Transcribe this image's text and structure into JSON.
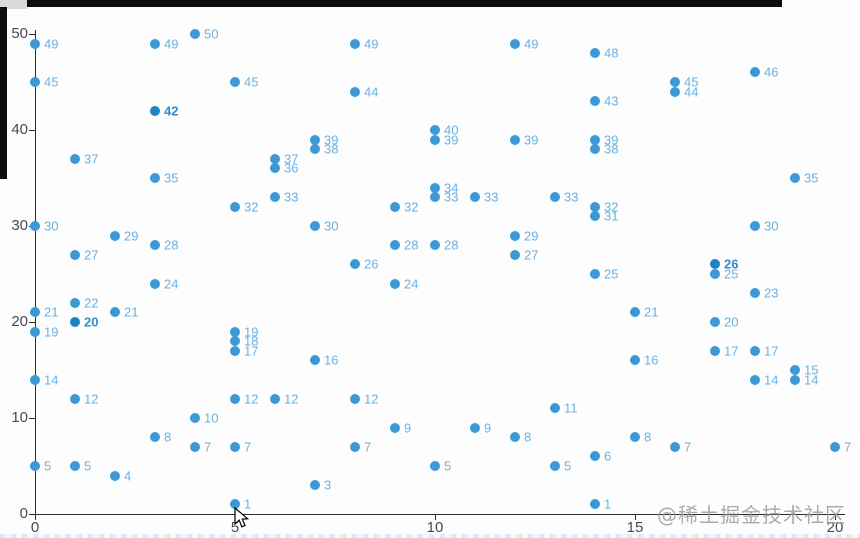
{
  "watermark": {
    "text": "@稀土掘金技术社区",
    "color": "#9c9c9c"
  },
  "chart_data": {
    "type": "scatter",
    "title": "",
    "xlabel": "",
    "ylabel": "",
    "grid": false,
    "legend": false,
    "point_label_source": "y-value shown right of each marker",
    "x_axis": {
      "min": 0,
      "max": 20,
      "ticks": [
        0,
        5,
        10,
        15,
        20
      ]
    },
    "y_axis": {
      "min": 0,
      "max": 50,
      "ticks": [
        0,
        10,
        20,
        30,
        40,
        50
      ]
    },
    "colors": {
      "marker": "#3d99d6",
      "marker_emphasis": "#1f83c4",
      "label": "#6cb1e1",
      "label_emphasis": "#2f8fce",
      "axis": "#2b2b2b",
      "tick_text": "#4a4a4a"
    },
    "points": [
      {
        "x": 4,
        "y": 50
      },
      {
        "x": 0,
        "y": 49
      },
      {
        "x": 3,
        "y": 49
      },
      {
        "x": 8,
        "y": 49
      },
      {
        "x": 12,
        "y": 49
      },
      {
        "x": 14,
        "y": 48
      },
      {
        "x": 18,
        "y": 46
      },
      {
        "x": 0,
        "y": 45
      },
      {
        "x": 5,
        "y": 45
      },
      {
        "x": 16,
        "y": 45
      },
      {
        "x": 8,
        "y": 44
      },
      {
        "x": 16,
        "y": 44
      },
      {
        "x": 14,
        "y": 43
      },
      {
        "x": 3,
        "y": 42,
        "bold": true
      },
      {
        "x": 10,
        "y": 40
      },
      {
        "x": 7,
        "y": 39
      },
      {
        "x": 10,
        "y": 39
      },
      {
        "x": 12,
        "y": 39
      },
      {
        "x": 14,
        "y": 39
      },
      {
        "x": 7,
        "y": 38
      },
      {
        "x": 14,
        "y": 38
      },
      {
        "x": 1,
        "y": 37
      },
      {
        "x": 6,
        "y": 37
      },
      {
        "x": 6,
        "y": 36
      },
      {
        "x": 3,
        "y": 35
      },
      {
        "x": 19,
        "y": 35
      },
      {
        "x": 10,
        "y": 34
      },
      {
        "x": 6,
        "y": 33
      },
      {
        "x": 10,
        "y": 33
      },
      {
        "x": 11,
        "y": 33
      },
      {
        "x": 13,
        "y": 33
      },
      {
        "x": 5,
        "y": 32
      },
      {
        "x": 9,
        "y": 32
      },
      {
        "x": 14,
        "y": 32
      },
      {
        "x": 14,
        "y": 31
      },
      {
        "x": 0,
        "y": 30
      },
      {
        "x": 7,
        "y": 30
      },
      {
        "x": 18,
        "y": 30
      },
      {
        "x": 2,
        "y": 29
      },
      {
        "x": 12,
        "y": 29
      },
      {
        "x": 3,
        "y": 28
      },
      {
        "x": 9,
        "y": 28
      },
      {
        "x": 10,
        "y": 28
      },
      {
        "x": 1,
        "y": 27
      },
      {
        "x": 12,
        "y": 27
      },
      {
        "x": 8,
        "y": 26
      },
      {
        "x": 17,
        "y": 26,
        "bold": true
      },
      {
        "x": 14,
        "y": 25
      },
      {
        "x": 17,
        "y": 25
      },
      {
        "x": 3,
        "y": 24
      },
      {
        "x": 9,
        "y": 24
      },
      {
        "x": 18,
        "y": 23
      },
      {
        "x": 1,
        "y": 22
      },
      {
        "x": 0,
        "y": 21
      },
      {
        "x": 2,
        "y": 21
      },
      {
        "x": 15,
        "y": 21
      },
      {
        "x": 1,
        "y": 20,
        "bold": true
      },
      {
        "x": 17,
        "y": 20
      },
      {
        "x": 0,
        "y": 19
      },
      {
        "x": 5,
        "y": 19
      },
      {
        "x": 5,
        "y": 18
      },
      {
        "x": 5,
        "y": 17
      },
      {
        "x": 17,
        "y": 17
      },
      {
        "x": 18,
        "y": 17
      },
      {
        "x": 7,
        "y": 16
      },
      {
        "x": 15,
        "y": 16
      },
      {
        "x": 19,
        "y": 15
      },
      {
        "x": 0,
        "y": 14
      },
      {
        "x": 18,
        "y": 14
      },
      {
        "x": 19,
        "y": 14
      },
      {
        "x": 1,
        "y": 12
      },
      {
        "x": 5,
        "y": 12
      },
      {
        "x": 6,
        "y": 12
      },
      {
        "x": 8,
        "y": 12
      },
      {
        "x": 13,
        "y": 11
      },
      {
        "x": 4,
        "y": 10
      },
      {
        "x": 9,
        "y": 9
      },
      {
        "x": 11,
        "y": 9
      },
      {
        "x": 3,
        "y": 8
      },
      {
        "x": 12,
        "y": 8
      },
      {
        "x": 15,
        "y": 8
      },
      {
        "x": 4,
        "y": 7
      },
      {
        "x": 5,
        "y": 7
      },
      {
        "x": 8,
        "y": 7
      },
      {
        "x": 16,
        "y": 7
      },
      {
        "x": 20,
        "y": 7
      },
      {
        "x": 14,
        "y": 6
      },
      {
        "x": 0,
        "y": 5
      },
      {
        "x": 1,
        "y": 5
      },
      {
        "x": 10,
        "y": 5
      },
      {
        "x": 13,
        "y": 5
      },
      {
        "x": 2,
        "y": 4
      },
      {
        "x": 7,
        "y": 3
      },
      {
        "x": 5,
        "y": 1
      },
      {
        "x": 14,
        "y": 1
      }
    ]
  }
}
